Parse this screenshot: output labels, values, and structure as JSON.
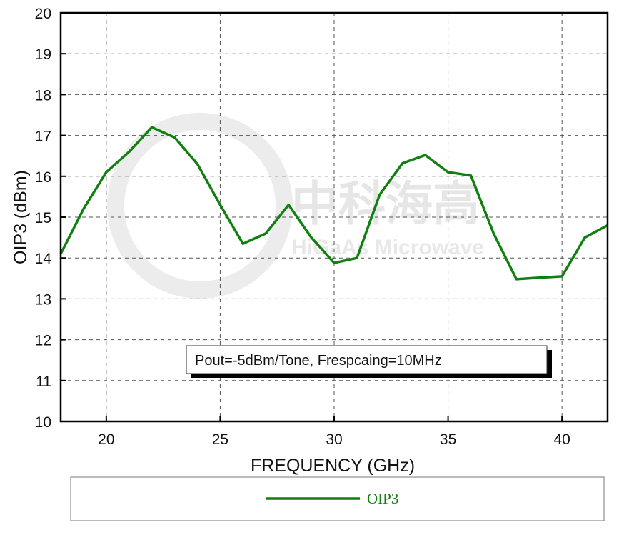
{
  "chart_data": {
    "type": "line",
    "xlabel": "FREQUENCY (GHz)",
    "ylabel": "OIP3 (dBm)",
    "xlim": [
      18,
      42
    ],
    "ylim": [
      10,
      20
    ],
    "xticks": [
      20,
      25,
      30,
      35,
      40
    ],
    "yticks": [
      10,
      11,
      12,
      13,
      14,
      15,
      16,
      17,
      18,
      19,
      20
    ],
    "grid": true,
    "legend_position": "bottom",
    "series": [
      {
        "name": "OIP3",
        "color": "#118011",
        "x": [
          18,
          19,
          20,
          21,
          22,
          23,
          24,
          25,
          26,
          27,
          28,
          29,
          30,
          31,
          32,
          33,
          34,
          35,
          36,
          37,
          38,
          39,
          40,
          41,
          42
        ],
        "y": [
          14.1,
          15.2,
          16.1,
          16.6,
          17.2,
          16.95,
          16.3,
          15.3,
          14.35,
          14.6,
          15.3,
          14.5,
          13.88,
          14.0,
          15.55,
          16.32,
          16.52,
          16.1,
          16.02,
          14.6,
          13.48,
          13.52,
          13.55,
          14.5,
          14.8
        ]
      }
    ],
    "annotation": "Pout=-5dBm/Tone, Frespcaing=10MHz"
  },
  "watermark": {
    "cn": "中科海高",
    "en": "HiGaAs Microwave"
  }
}
